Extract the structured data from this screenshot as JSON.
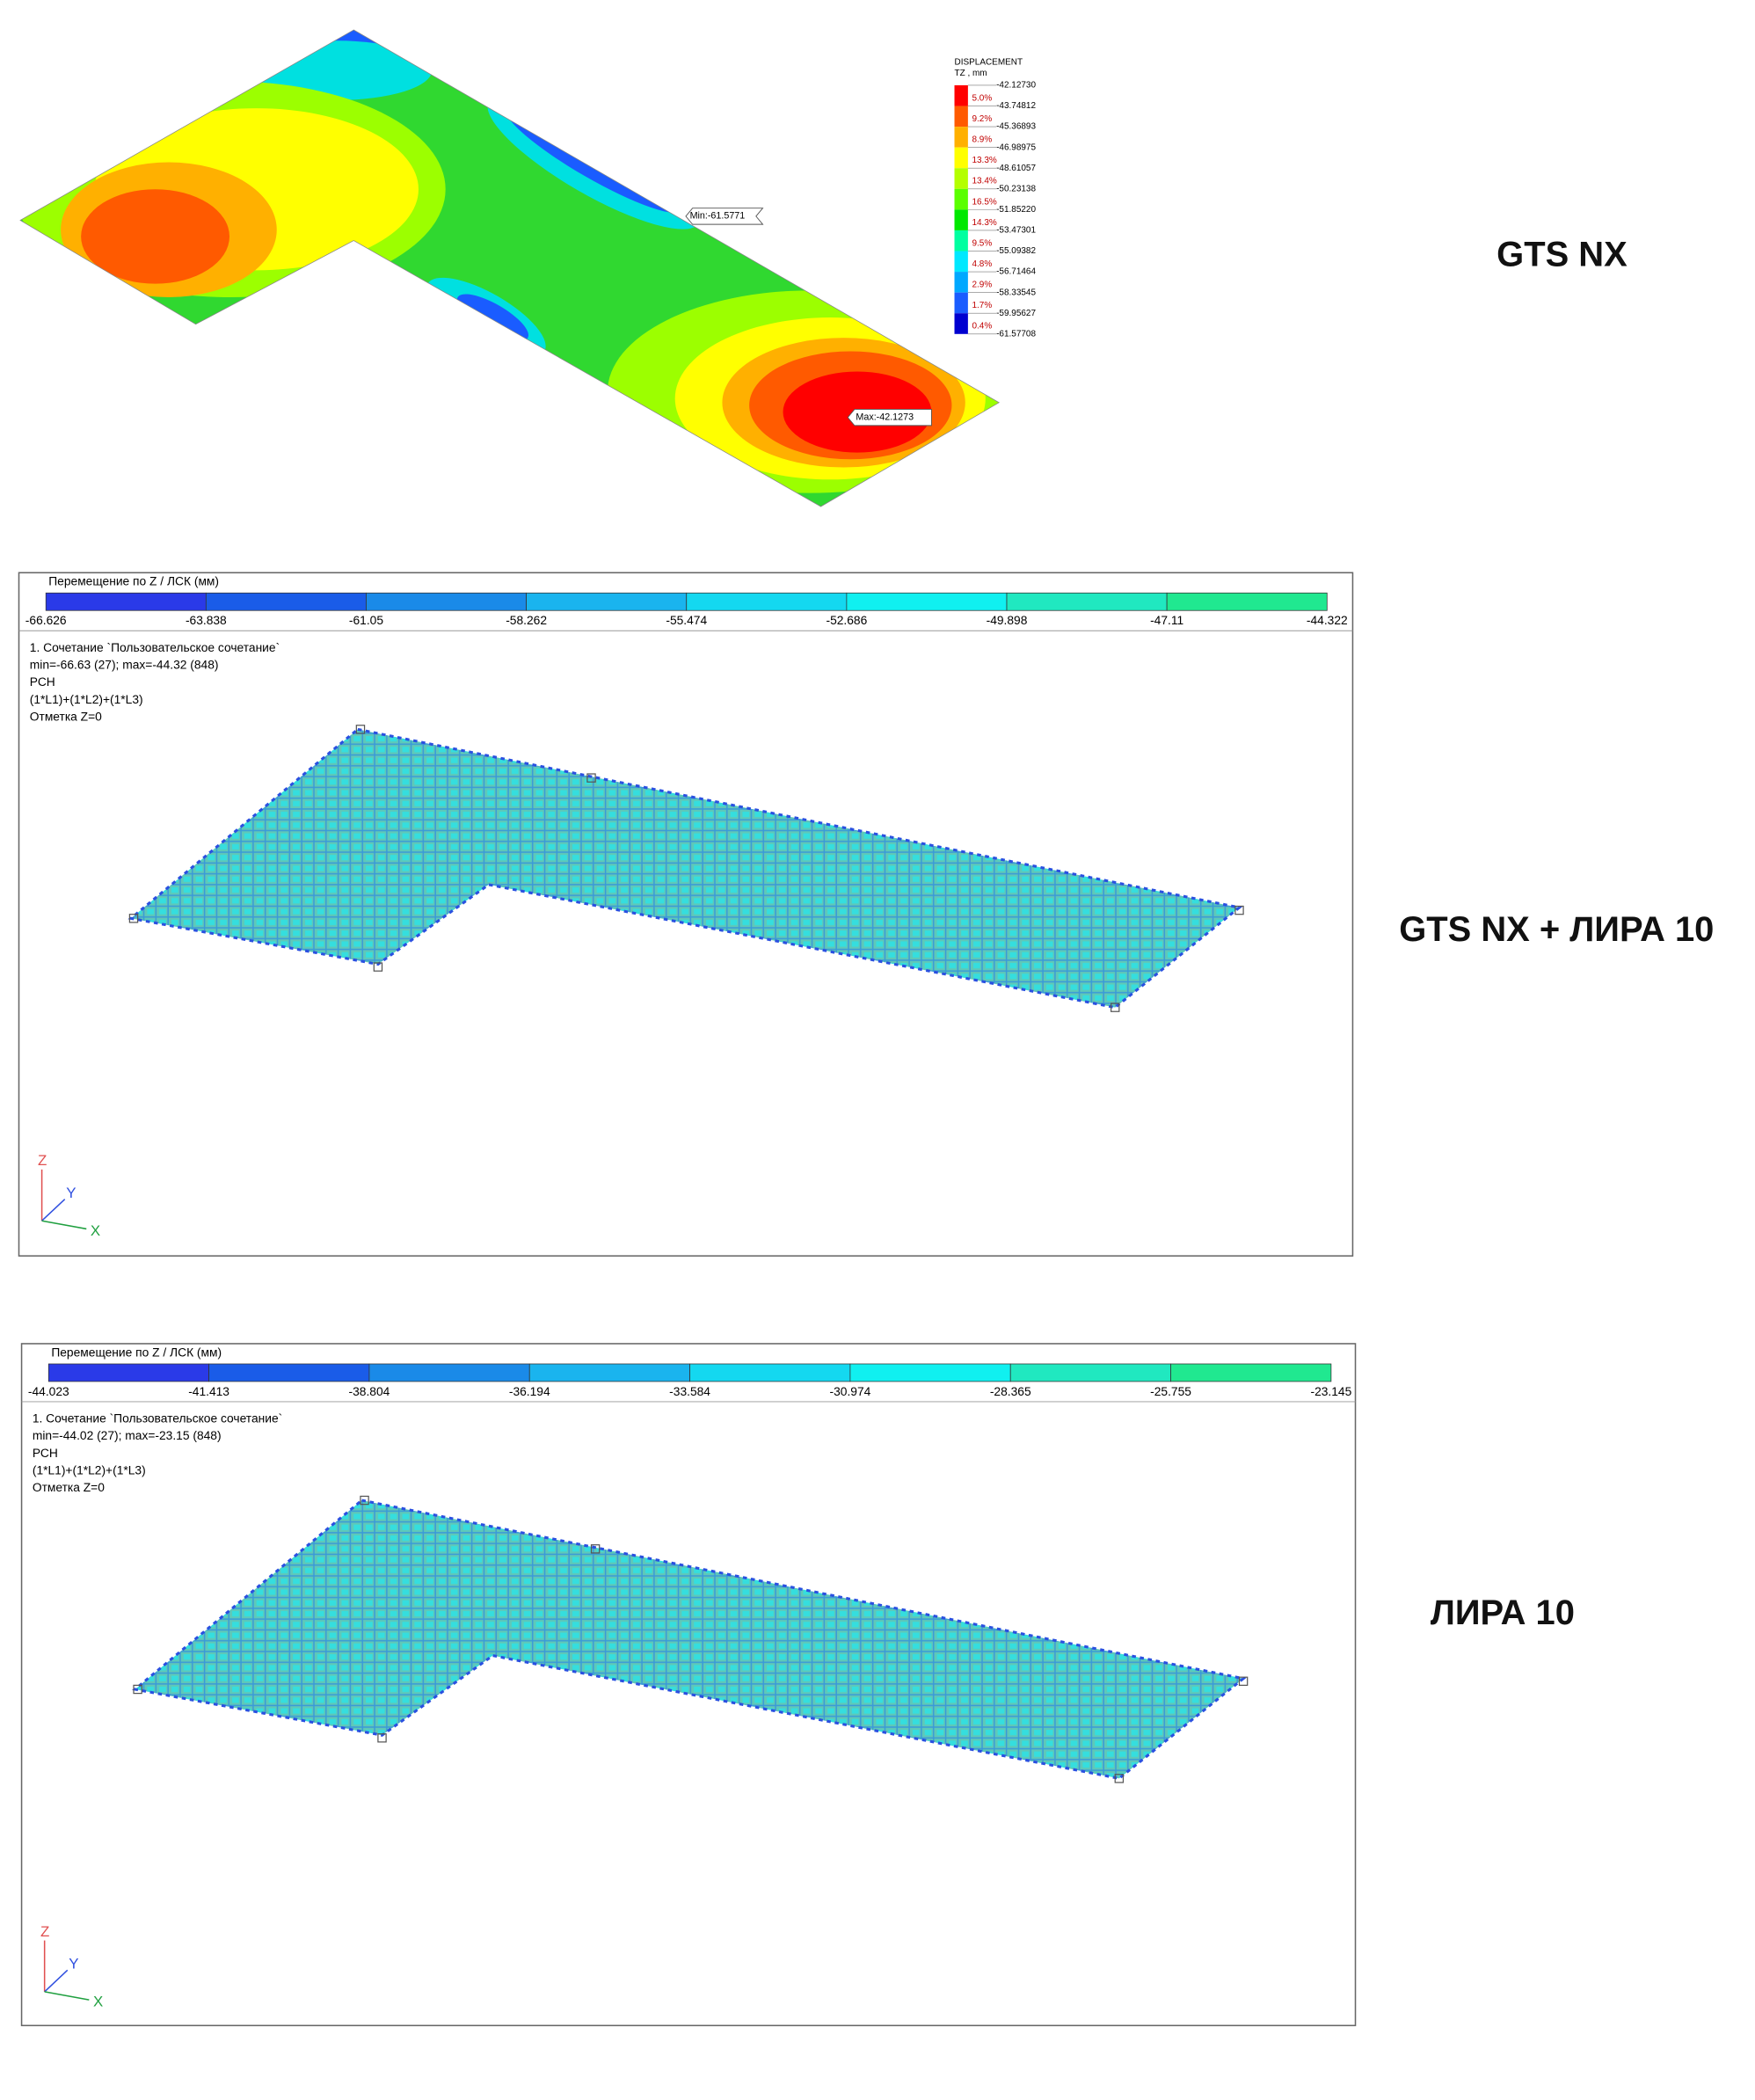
{
  "panels": [
    {
      "label": "GTS NX",
      "legend": {
        "title": "DISPLACEMENT",
        "unit": "TZ , mm",
        "levels": [
          "-42.12730",
          "-43.74812",
          "-45.36893",
          "-46.98975",
          "-48.61057",
          "-50.23138",
          "-51.85220",
          "-53.47301",
          "-55.09382",
          "-56.71464",
          "-58.33545",
          "-59.95627",
          "-61.57708"
        ],
        "percents": [
          "5.0%",
          "9.2%",
          "8.9%",
          "13.3%",
          "13.4%",
          "16.5%",
          "14.3%",
          "9.5%",
          "4.8%",
          "2.9%",
          "1.7%",
          "0.4%"
        ]
      },
      "min_label": "Min:-61.5771",
      "max_label": "Max:-42.1273"
    },
    {
      "label": "GTS NX + ЛИРА 10",
      "scale": {
        "title": "Перемещение по Z / ЛСК (мм)",
        "ticks": [
          "-66.626",
          "-63.838",
          "-61.05",
          "-58.262",
          "-55.474",
          "-52.686",
          "-49.898",
          "-47.11",
          "-44.322"
        ]
      },
      "info": [
        "1. Сочетание `Пользовательское сочетание`",
        "min=-66.63 (27); max=-44.32 (848)",
        "РСН",
        "(1*L1)+(1*L2)+(1*L3)",
        "Отметка Z=0"
      ],
      "axes": [
        "Z",
        "Y",
        "X"
      ]
    },
    {
      "label": "ЛИРА 10",
      "scale": {
        "title": "Перемещение по Z / ЛСК (мм)",
        "ticks": [
          "-44.023",
          "-41.413",
          "-38.804",
          "-36.194",
          "-33.584",
          "-30.974",
          "-28.365",
          "-25.755",
          "-23.145"
        ]
      },
      "info": [
        "1. Сочетание `Пользовательское сочетание`",
        "min=-44.02 (27); max=-23.15 (848)",
        "РСН",
        "(1*L1)+(1*L2)+(1*L3)",
        "Отметка Z=0"
      ],
      "axes": [
        "Z",
        "Y",
        "X"
      ]
    }
  ]
}
